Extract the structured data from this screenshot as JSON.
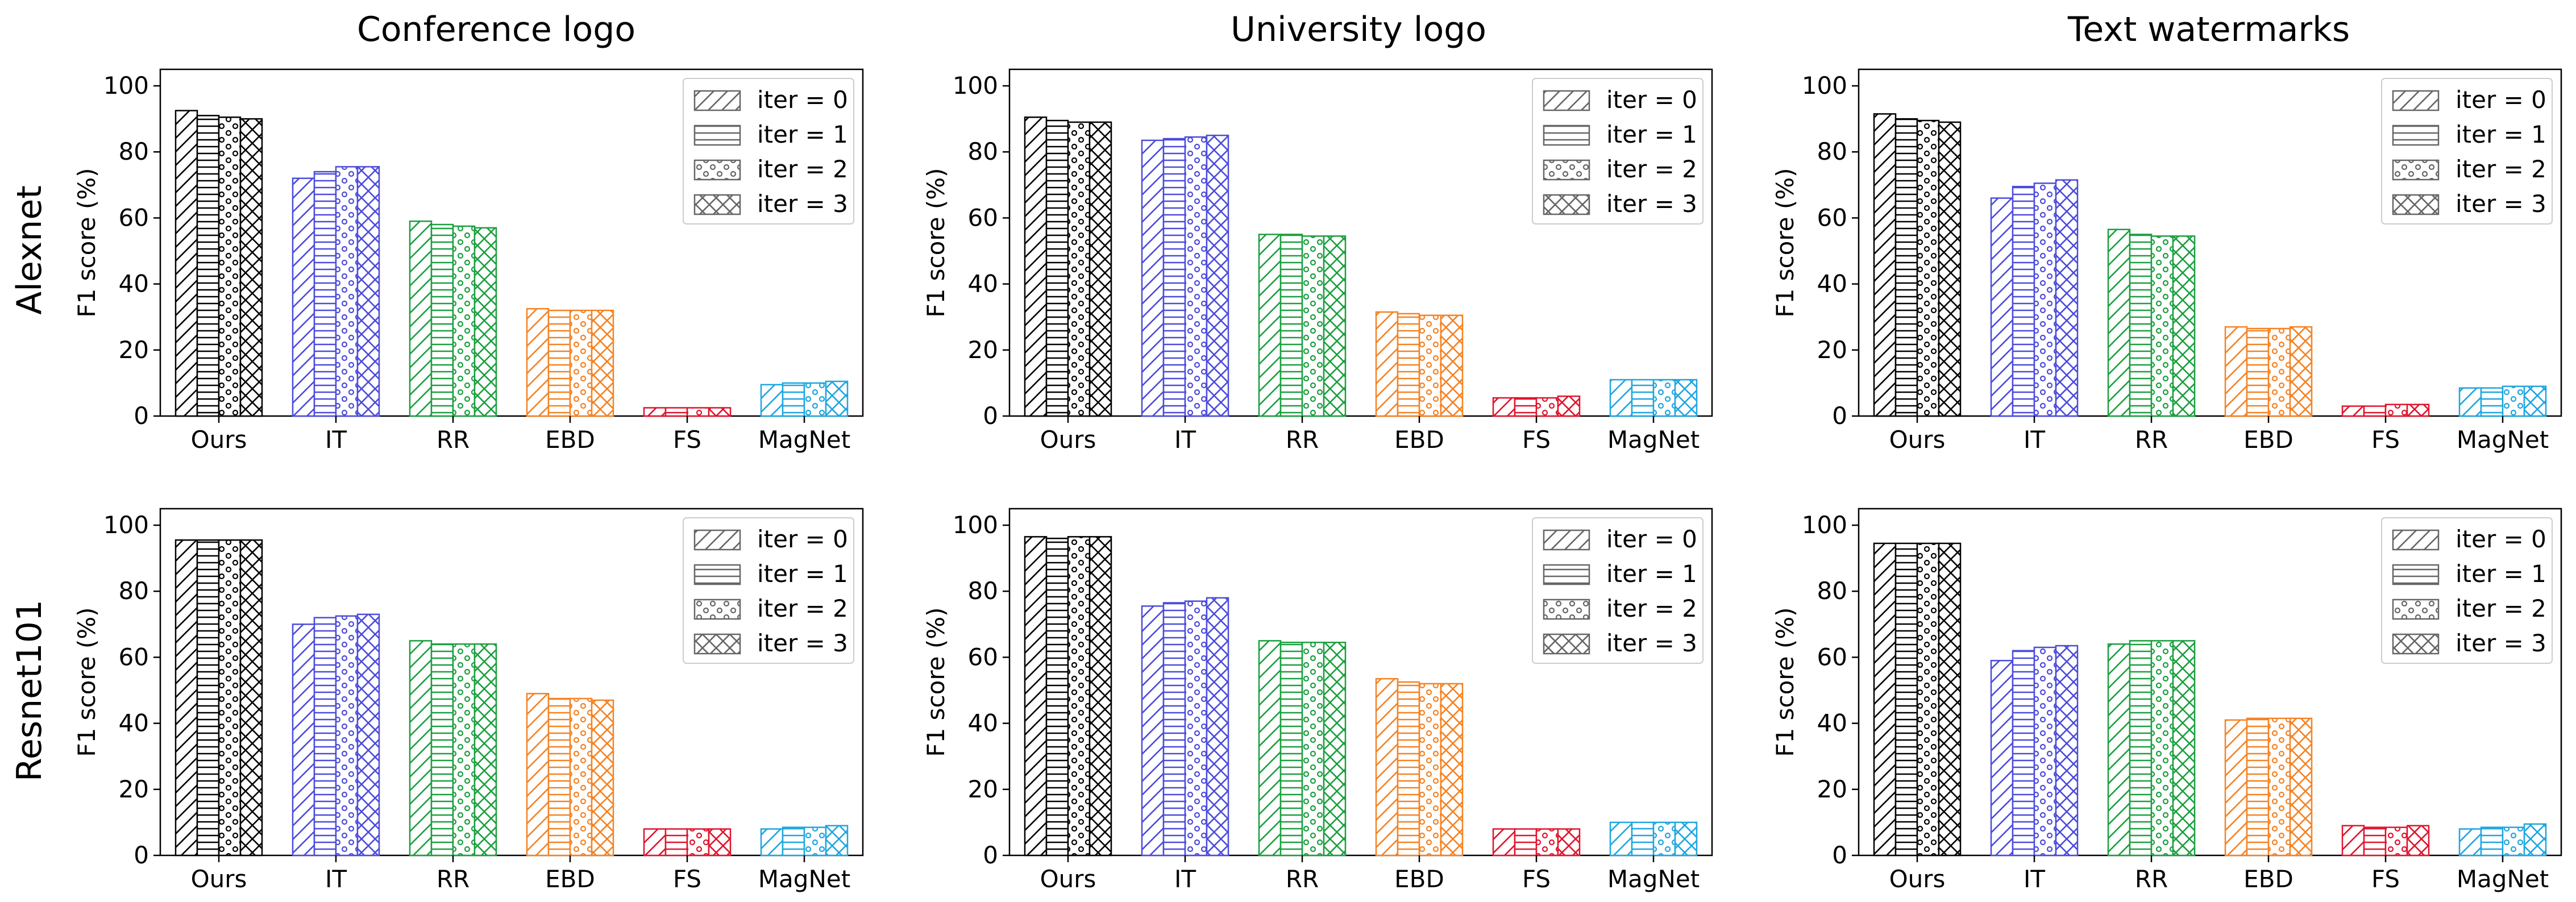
{
  "figure": {
    "column_titles": [
      "Conference logo",
      "University logo",
      "Text watermarks"
    ],
    "row_labels": [
      "Alexnet",
      "Resnet101"
    ]
  },
  "series_styles": {
    "iter_0": "diagonal-hatch",
    "iter_1": "horizontal-hatch",
    "iter_2": "dot-hatch",
    "iter_3": "cross-hatch"
  },
  "category_colors": {
    "Ours": "#000000",
    "IT": "#4b4bdc",
    "RR": "#1a9f3e",
    "EBD": "#f58223",
    "FS": "#e0142c",
    "MagNet": "#1ea6e0"
  },
  "chart_data": [
    {
      "type": "bar",
      "title": "Conference logo",
      "row": "Alexnet",
      "ylabel": "F1 score (%)",
      "ylim": [
        0,
        105
      ],
      "yticks": [
        0,
        20,
        40,
        60,
        80,
        100
      ],
      "categories": [
        "Ours",
        "IT",
        "RR",
        "EBD",
        "FS",
        "MagNet"
      ],
      "series": [
        {
          "name": "iter = 0",
          "values": [
            92.5,
            72,
            59,
            32.5,
            2.5,
            9.5
          ]
        },
        {
          "name": "iter = 1",
          "values": [
            91,
            74,
            58,
            32,
            2.5,
            10
          ]
        },
        {
          "name": "iter = 2",
          "values": [
            90.5,
            75.5,
            57.5,
            32,
            2.5,
            10
          ]
        },
        {
          "name": "iter = 3",
          "values": [
            90,
            75.5,
            57,
            32,
            2.5,
            10.5
          ]
        }
      ],
      "legend": "top-right",
      "grid": false
    },
    {
      "type": "bar",
      "title": "University logo",
      "row": "Alexnet",
      "ylabel": "F1 score (%)",
      "ylim": [
        0,
        105
      ],
      "yticks": [
        0,
        20,
        40,
        60,
        80,
        100
      ],
      "categories": [
        "Ours",
        "IT",
        "RR",
        "EBD",
        "FS",
        "MagNet"
      ],
      "series": [
        {
          "name": "iter = 0",
          "values": [
            90.5,
            83.5,
            55,
            31.5,
            5.5,
            11
          ]
        },
        {
          "name": "iter = 1",
          "values": [
            89.5,
            84,
            55,
            31,
            5.5,
            11
          ]
        },
        {
          "name": "iter = 2",
          "values": [
            89,
            84.5,
            54.5,
            30.5,
            5.5,
            11
          ]
        },
        {
          "name": "iter = 3",
          "values": [
            89,
            85,
            54.5,
            30.5,
            6,
            11
          ]
        }
      ],
      "legend": "top-right",
      "grid": false
    },
    {
      "type": "bar",
      "title": "Text watermarks",
      "row": "Alexnet",
      "ylabel": "F1 score (%)",
      "ylim": [
        0,
        105
      ],
      "yticks": [
        0,
        20,
        40,
        60,
        80,
        100
      ],
      "categories": [
        "Ours",
        "IT",
        "RR",
        "EBD",
        "FS",
        "MagNet"
      ],
      "series": [
        {
          "name": "iter = 0",
          "values": [
            91.5,
            66,
            56.5,
            27,
            3,
            8.5
          ]
        },
        {
          "name": "iter = 1",
          "values": [
            90,
            69.5,
            55,
            26.5,
            3,
            8.5
          ]
        },
        {
          "name": "iter = 2",
          "values": [
            89.5,
            70.5,
            54.5,
            26.5,
            3.5,
            9
          ]
        },
        {
          "name": "iter = 3",
          "values": [
            89,
            71.5,
            54.5,
            27,
            3.5,
            9
          ]
        }
      ],
      "legend": "top-right",
      "grid": false
    },
    {
      "type": "bar",
      "title": "Conference logo",
      "row": "Resnet101",
      "ylabel": "F1 score (%)",
      "ylim": [
        0,
        105
      ],
      "yticks": [
        0,
        20,
        40,
        60,
        80,
        100
      ],
      "categories": [
        "Ours",
        "IT",
        "RR",
        "EBD",
        "FS",
        "MagNet"
      ],
      "series": [
        {
          "name": "iter = 0",
          "values": [
            95.5,
            70,
            65,
            49,
            8,
            8
          ]
        },
        {
          "name": "iter = 1",
          "values": [
            95.5,
            72,
            64,
            47.5,
            8,
            8.5
          ]
        },
        {
          "name": "iter = 2",
          "values": [
            95.5,
            72.5,
            64,
            47.5,
            8,
            8.5
          ]
        },
        {
          "name": "iter = 3",
          "values": [
            95.5,
            73,
            64,
            47,
            8,
            9
          ]
        }
      ],
      "legend": "top-right",
      "grid": false
    },
    {
      "type": "bar",
      "title": "University logo",
      "row": "Resnet101",
      "ylabel": "F1 score (%)",
      "ylim": [
        0,
        105
      ],
      "yticks": [
        0,
        20,
        40,
        60,
        80,
        100
      ],
      "categories": [
        "Ours",
        "IT",
        "RR",
        "EBD",
        "FS",
        "MagNet"
      ],
      "series": [
        {
          "name": "iter = 0",
          "values": [
            96.5,
            75.5,
            65,
            53.5,
            8,
            10
          ]
        },
        {
          "name": "iter = 1",
          "values": [
            96,
            76.5,
            64.5,
            52.5,
            8,
            10
          ]
        },
        {
          "name": "iter = 2",
          "values": [
            96.5,
            77,
            64.5,
            52,
            8,
            10
          ]
        },
        {
          "name": "iter = 3",
          "values": [
            96.5,
            78,
            64.5,
            52,
            8,
            10
          ]
        }
      ],
      "legend": "top-right",
      "grid": false
    },
    {
      "type": "bar",
      "title": "Text watermarks",
      "row": "Resnet101",
      "ylabel": "F1 score (%)",
      "ylim": [
        0,
        105
      ],
      "yticks": [
        0,
        20,
        40,
        60,
        80,
        100
      ],
      "categories": [
        "Ours",
        "IT",
        "RR",
        "EBD",
        "FS",
        "MagNet"
      ],
      "series": [
        {
          "name": "iter = 0",
          "values": [
            94.5,
            59,
            64,
            41,
            9,
            8
          ]
        },
        {
          "name": "iter = 1",
          "values": [
            94.5,
            62,
            65,
            41.5,
            8.5,
            8.5
          ]
        },
        {
          "name": "iter = 2",
          "values": [
            94.5,
            63,
            65,
            41.5,
            8.5,
            8.5
          ]
        },
        {
          "name": "iter = 3",
          "values": [
            94.5,
            63.5,
            65,
            41.5,
            9,
            9.5
          ]
        }
      ],
      "legend": "top-right",
      "grid": false
    }
  ]
}
